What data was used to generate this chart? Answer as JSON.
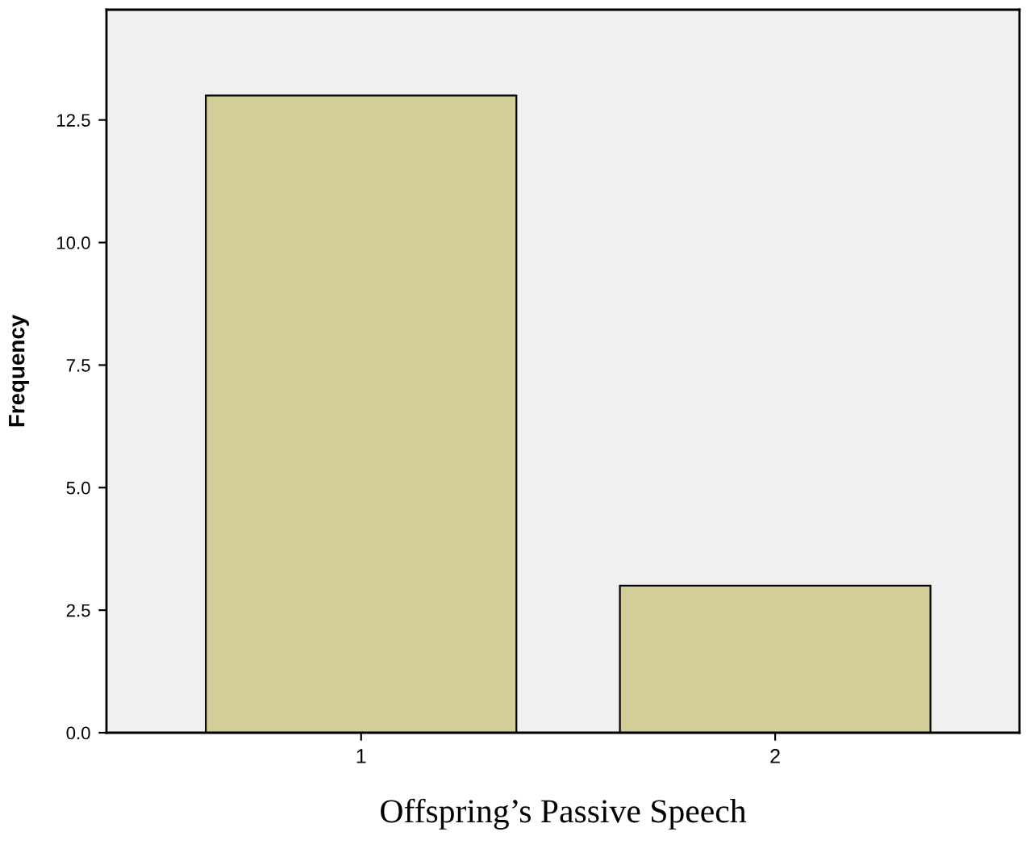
{
  "chart_data": {
    "type": "bar",
    "xlabel": "Offspring’s Passive Speech",
    "ylabel": "Frequency",
    "categories": [
      "1",
      "2"
    ],
    "values": [
      13,
      3
    ],
    "color": "#d3ce97",
    "ylim": [
      0,
      14.75
    ],
    "yticks": [
      {
        "value": 0,
        "label": "0.0"
      },
      {
        "value": 2.5,
        "label": "2.5"
      },
      {
        "value": 5,
        "label": "5.0"
      },
      {
        "value": 7.5,
        "label": "7.5"
      },
      {
        "value": 10,
        "label": "10.0"
      },
      {
        "value": 12.5,
        "label": "12.5"
      }
    ],
    "grid": false,
    "legend": false
  }
}
